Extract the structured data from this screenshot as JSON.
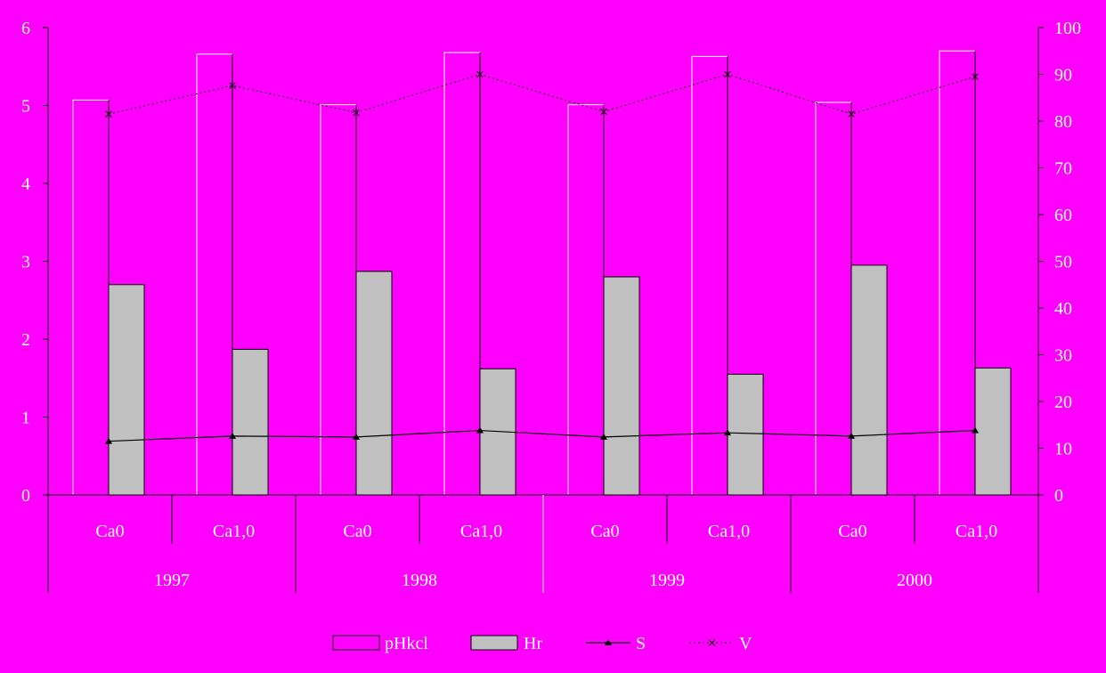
{
  "colors": {
    "background": "#ff00ff",
    "axis": "#000000",
    "text": "#ffffff",
    "bar_pHkcl_fill": "#ff00ff",
    "bar_pHkcl_edge_light": "#ffffff",
    "bar_pHkcl_edge_dark": "#000000",
    "bar_Hr_fill": "#c0c0c0",
    "line_S": "#000000",
    "line_V": "#000000"
  },
  "chart_data": {
    "type": "bar",
    "categories": [
      "Ca0",
      "Ca1,0",
      "Ca0",
      "Ca1,0",
      "Ca0",
      "Ca1,0",
      "Ca0",
      "Ca1,0"
    ],
    "groups": [
      "1997",
      "1998",
      "1999",
      "2000"
    ],
    "y_left": {
      "ylim": [
        0,
        6
      ],
      "ticks": [
        "0",
        "1",
        "2",
        "3",
        "4",
        "5",
        "6"
      ]
    },
    "y_right": {
      "ylim": [
        0,
        100
      ],
      "ticks": [
        "0",
        "10",
        "20",
        "30",
        "40",
        "50",
        "60",
        "70",
        "80",
        "90",
        "100"
      ]
    },
    "grid": false,
    "legend_position": "bottom",
    "series": [
      {
        "name": "pHkcl",
        "kind": "bar",
        "axis": "left",
        "values": [
          5.07,
          5.66,
          5.01,
          5.68,
          5.01,
          5.63,
          5.04,
          5.7
        ]
      },
      {
        "name": "Hr",
        "kind": "bar",
        "axis": "left",
        "values": [
          2.7,
          1.87,
          2.87,
          1.62,
          2.8,
          1.55,
          2.95,
          1.63
        ]
      },
      {
        "name": "S",
        "kind": "line",
        "marker": "triangle",
        "axis": "right",
        "values": [
          11.5,
          12.6,
          12.4,
          13.8,
          12.4,
          13.3,
          12.6,
          13.8
        ]
      },
      {
        "name": "V",
        "kind": "line",
        "marker": "x",
        "axis": "right",
        "values": [
          81.5,
          87.6,
          81.8,
          90.0,
          82.0,
          90.0,
          81.5,
          89.5
        ]
      }
    ]
  }
}
